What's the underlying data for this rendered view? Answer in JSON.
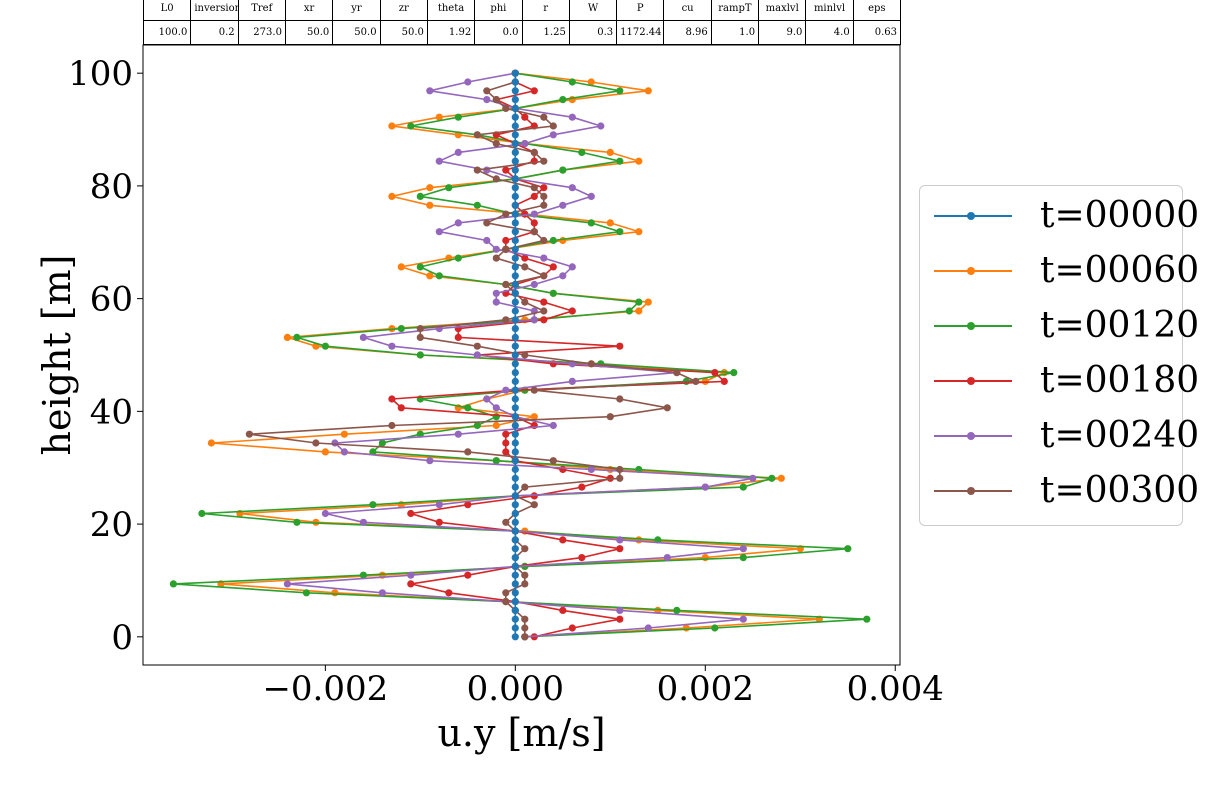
{
  "params": {
    "headers": [
      "L0",
      "inversion",
      "Tref",
      "xr",
      "yr",
      "zr",
      "theta",
      "phi",
      "r",
      "W",
      "P",
      "cu",
      "rampT",
      "maxlvl",
      "minlvl",
      "eps"
    ],
    "values": [
      "100.0",
      "0.2",
      "273.0",
      "50.0",
      "50.0",
      "50.0",
      "1.92",
      "0.0",
      "1.25",
      "0.3",
      "1172.44",
      "8.96",
      "1.0",
      "9.0",
      "4.0",
      "0.63"
    ]
  },
  "colors": {
    "t=00000": "#1f77b4",
    "t=00060": "#ff7f0e",
    "t=00120": "#2ca02c",
    "t=00180": "#d62728",
    "t=00240": "#9467bd",
    "t=00300": "#8c564b"
  },
  "chart_data": {
    "type": "line",
    "xlabel": "u.y [m/s]",
    "ylabel": "height [m]",
    "xlim": [
      -0.00392,
      0.00405
    ],
    "ylim": [
      -5,
      105
    ],
    "xticks": [
      -0.002,
      0.0,
      0.002,
      0.004
    ],
    "xtick_labels": [
      "−0.002",
      "0.000",
      "0.002",
      "0.004"
    ],
    "yticks": [
      0,
      20,
      40,
      60,
      80,
      100
    ],
    "ytick_labels": [
      "0",
      "20",
      "40",
      "60",
      "80",
      "100"
    ],
    "legend_position": "outside-right",
    "heights": [
      0.0,
      1.56,
      3.13,
      4.69,
      6.25,
      7.81,
      9.38,
      10.94,
      12.5,
      14.06,
      15.63,
      17.19,
      18.75,
      20.31,
      21.88,
      23.44,
      25.0,
      26.56,
      28.13,
      29.69,
      31.25,
      32.81,
      34.38,
      35.94,
      37.5,
      39.06,
      40.63,
      42.19,
      43.75,
      45.31,
      46.88,
      48.44,
      50.0,
      51.56,
      53.13,
      54.69,
      56.25,
      57.81,
      59.38,
      60.94,
      62.5,
      64.06,
      65.63,
      67.19,
      68.75,
      70.31,
      71.88,
      73.44,
      75.0,
      76.56,
      78.13,
      79.69,
      81.25,
      82.81,
      84.38,
      85.94,
      87.5,
      89.06,
      90.63,
      92.19,
      93.75,
      95.31,
      96.88,
      98.44,
      100.0
    ],
    "series": [
      {
        "name": "t=00000",
        "values": [
          0,
          0,
          0,
          0,
          0,
          0,
          0,
          0,
          0,
          0,
          0,
          0,
          0,
          0,
          0,
          0,
          0,
          0,
          0,
          0,
          0,
          0,
          0,
          0,
          0,
          0,
          0,
          0,
          0,
          0,
          0,
          0,
          0,
          0,
          0,
          0,
          0,
          0,
          0,
          0,
          0,
          0,
          0,
          0,
          0,
          0,
          0,
          0,
          0,
          0,
          0,
          0,
          0,
          0,
          0,
          0,
          0,
          0,
          0,
          0,
          0,
          0,
          0,
          0,
          0
        ]
      },
      {
        "name": "t=00060",
        "values": [
          0.0001,
          0.0018,
          0.0032,
          0.0015,
          -0.0001,
          -0.0019,
          -0.0031,
          -0.0014,
          0.0001,
          0.002,
          0.003,
          0.0013,
          0.0001,
          -0.0021,
          -0.0029,
          -0.0012,
          0,
          0.002,
          0.0028,
          0.001,
          -0.0002,
          -0.002,
          -0.0032,
          -0.0018,
          -0.0002,
          0.0002,
          -0.0006,
          -0.0003,
          0.0001,
          0.002,
          0.0022,
          0.0008,
          -0.001,
          -0.0021,
          -0.0024,
          -0.0013,
          0.0001,
          0.0013,
          0.0014,
          0.0004,
          -0.0001,
          -0.0009,
          -0.0012,
          -0.0007,
          -0.0001,
          0.0005,
          0.0013,
          0.001,
          0.0001,
          -0.0009,
          -0.0013,
          -0.0009,
          0,
          0.0005,
          0.0013,
          0.001,
          0.0001,
          -0.0006,
          -0.0013,
          -0.0008,
          0,
          0.0006,
          0.0014,
          0.0008,
          0
        ]
      },
      {
        "name": "t=00120",
        "values": [
          0.0001,
          0.0021,
          0.0037,
          0.0017,
          -0.0001,
          -0.0022,
          -0.0036,
          -0.0016,
          0.0001,
          0.0024,
          0.0035,
          0.0015,
          0,
          -0.0023,
          -0.0033,
          -0.0015,
          0,
          0.0024,
          0.0027,
          0.0013,
          -0.0002,
          -0.0015,
          -0.0014,
          -0.001,
          -0.0004,
          -0.0002,
          -0.0005,
          -0.001,
          0.0001,
          0.0018,
          0.0023,
          0.0009,
          -0.001,
          -0.002,
          -0.0023,
          -0.0012,
          0.0002,
          0.0012,
          0.0013,
          0.0004,
          -0.0001,
          -0.0008,
          -0.001,
          -0.0006,
          -0.0001,
          0.0004,
          0.0011,
          0.0008,
          0,
          -0.0004,
          -0.001,
          -0.0007,
          0,
          0.0005,
          0.0011,
          0.0007,
          0.0001,
          -0.0004,
          -0.0011,
          -0.0006,
          0,
          0.0005,
          0.0011,
          0.0006,
          0
        ]
      },
      {
        "name": "t=00180",
        "values": [
          0.0002,
          0.0006,
          0.0011,
          0.0005,
          0,
          -0.0007,
          -0.0011,
          -0.0005,
          0,
          0.0007,
          0.0011,
          0.0005,
          0,
          -0.0008,
          -0.0011,
          -0.0005,
          0.0002,
          0.0007,
          0.001,
          0.0005,
          0,
          -0.0001,
          -0.0001,
          -0.0001,
          0.0002,
          0,
          -0.0012,
          -0.0013,
          0,
          0.0022,
          0.0021,
          0.0004,
          -0.0004,
          0.0011,
          -0.0006,
          -0.0006,
          0.0003,
          0.0006,
          0.0003,
          -0.0001,
          0,
          0.0003,
          0.0004,
          0.0001,
          -0.0001,
          -0.0001,
          0.0002,
          0.0002,
          0.0001,
          0,
          0.0002,
          0.0003,
          0,
          -0.0001,
          0.0002,
          0.0002,
          0,
          -0.0002,
          0.0002,
          0.0001,
          0,
          -0.0002,
          0.0002,
          0,
          0
        ]
      },
      {
        "name": "t=00240",
        "values": [
          0.0001,
          0.0014,
          0.0024,
          0.0011,
          -0.0001,
          -0.0014,
          -0.0024,
          -0.0011,
          0,
          0.0016,
          0.0024,
          0.0011,
          0,
          -0.0016,
          -0.002,
          -0.0008,
          0,
          0.002,
          0.0025,
          0.0008,
          -0.0009,
          -0.0018,
          -0.0019,
          -0.0006,
          0.0004,
          0,
          -0.0002,
          -0.0003,
          -0.0001,
          0.0006,
          0.0017,
          0.0006,
          -0.0004,
          -0.0013,
          -0.0016,
          -0.0008,
          0.0002,
          0.0002,
          -0.0002,
          -0.0002,
          0.0002,
          0.0005,
          0.0006,
          0.0003,
          -0.0002,
          -0.0003,
          -0.0008,
          -0.0006,
          0.0002,
          0.0005,
          0.0008,
          0.0006,
          0,
          -0.0003,
          -0.0008,
          -0.0006,
          0.0001,
          0.0004,
          0.0009,
          0.0006,
          0,
          -0.0003,
          -0.0009,
          -0.0005,
          0
        ]
      },
      {
        "name": "t=00300",
        "values": [
          0.0001,
          0.0001,
          0.0001,
          0,
          -0.0001,
          -0.0001,
          0.0001,
          0.0001,
          0,
          0,
          0.0001,
          0,
          0,
          -0.0001,
          0,
          0.0002,
          0,
          0.0001,
          0.0011,
          0.0011,
          0.0004,
          -0.0005,
          -0.0021,
          -0.0028,
          -0.0013,
          0.001,
          0.0016,
          0.0011,
          0.0002,
          0.0019,
          0.0017,
          0.0008,
          0.0001,
          -0.0004,
          -0.001,
          -0.001,
          -0.0001,
          0.0003,
          0.0001,
          0,
          -0.0001,
          0.0003,
          0.0001,
          -0.0002,
          -0.0001,
          0.0003,
          0.0002,
          -0.0003,
          -0.0001,
          0.0003,
          0.0003,
          0.0002,
          -0.0002,
          -0.0004,
          0.0003,
          0.0002,
          -0.0002,
          -0.0004,
          0.0004,
          0.0003,
          -0.0001,
          -0.0002,
          -0.0003,
          0,
          0
        ]
      }
    ]
  }
}
